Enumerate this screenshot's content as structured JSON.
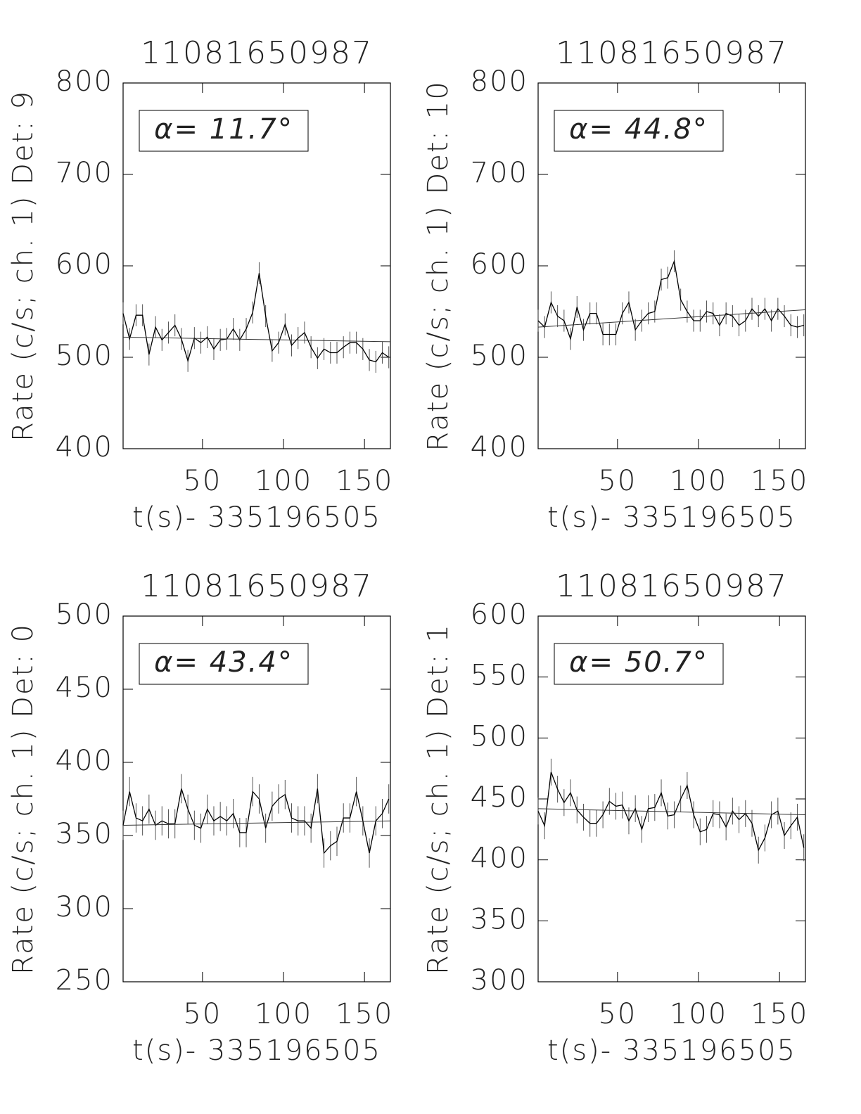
{
  "chart_data": [
    {
      "type": "line",
      "title": "11081650987",
      "xlabel": "t(s)- 335196505",
      "ylabel": "Rate (c/s; ch. 1) Det: 9",
      "annotation": "α= 11.7°",
      "color": "#000000",
      "x": [
        1,
        5,
        9,
        13,
        17,
        21,
        25,
        29,
        33,
        37,
        41,
        45,
        49,
        53,
        57,
        61,
        65,
        69,
        73,
        77,
        81,
        85,
        89,
        93,
        97,
        101,
        105,
        109,
        113,
        117,
        121,
        125,
        129,
        133,
        137,
        141,
        145,
        149,
        153,
        157,
        161,
        165
      ],
      "values": [
        548,
        520,
        546,
        546,
        503,
        533,
        519,
        527,
        535,
        520,
        496,
        521,
        516,
        522,
        509,
        519,
        520,
        531,
        519,
        531,
        549,
        592,
        545,
        507,
        516,
        536,
        513,
        521,
        527,
        511,
        499,
        509,
        505,
        505,
        511,
        516,
        516,
        509,
        497,
        495,
        505,
        500
      ],
      "error": 12,
      "fit_x": [
        1,
        166
      ],
      "fit_y": [
        522,
        517
      ],
      "xlim": [
        1,
        166
      ],
      "ylim": [
        400,
        800
      ],
      "xticks": [
        50,
        100,
        150
      ],
      "yticks": [
        400,
        500,
        600,
        700,
        800
      ]
    },
    {
      "type": "line",
      "title": "11081650987",
      "xlabel": "t(s)- 335196505",
      "ylabel": "Rate (c/s; ch. 1) Det: 10",
      "annotation": "α= 44.8°",
      "color": "#000000",
      "x": [
        1,
        5,
        9,
        13,
        17,
        21,
        25,
        29,
        33,
        37,
        41,
        45,
        49,
        53,
        57,
        61,
        65,
        69,
        73,
        77,
        81,
        85,
        89,
        93,
        97,
        101,
        105,
        109,
        113,
        117,
        121,
        125,
        129,
        133,
        137,
        141,
        145,
        149,
        153,
        157,
        161,
        165
      ],
      "values": [
        540,
        533,
        560,
        545,
        540,
        520,
        555,
        530,
        548,
        548,
        525,
        525,
        525,
        548,
        560,
        530,
        540,
        548,
        550,
        585,
        587,
        605,
        563,
        550,
        540,
        540,
        550,
        548,
        535,
        548,
        545,
        535,
        540,
        553,
        545,
        553,
        540,
        553,
        545,
        535,
        533,
        535
      ],
      "error": 12,
      "fit_x": [
        1,
        166
      ],
      "fit_y": [
        533,
        552
      ],
      "xlim": [
        1,
        166
      ],
      "ylim": [
        400,
        800
      ],
      "xticks": [
        50,
        100,
        150
      ],
      "yticks": [
        400,
        500,
        600,
        700,
        800
      ]
    },
    {
      "type": "line",
      "title": "11081650987",
      "xlabel": "t(s)- 335196505",
      "ylabel": "Rate (c/s; ch. 1) Det: 0",
      "annotation": "α= 43.4°",
      "color": "#000000",
      "x": [
        1,
        5,
        9,
        13,
        17,
        21,
        25,
        29,
        33,
        37,
        41,
        45,
        49,
        53,
        57,
        61,
        65,
        69,
        73,
        77,
        81,
        85,
        89,
        93,
        97,
        101,
        105,
        109,
        113,
        117,
        121,
        125,
        129,
        133,
        137,
        141,
        145,
        149,
        153,
        157,
        161,
        165
      ],
      "values": [
        357,
        380,
        362,
        360,
        368,
        357,
        360,
        358,
        358,
        382,
        368,
        357,
        355,
        368,
        360,
        363,
        360,
        365,
        352,
        352,
        380,
        375,
        355,
        370,
        375,
        378,
        362,
        360,
        360,
        355,
        382,
        338,
        343,
        346,
        362,
        362,
        380,
        360,
        338,
        360,
        365,
        375
      ],
      "error": 10,
      "fit_x": [
        1,
        166
      ],
      "fit_y": [
        357,
        360
      ],
      "xlim": [
        1,
        166
      ],
      "ylim": [
        250,
        500
      ],
      "xticks": [
        50,
        100,
        150
      ],
      "yticks": [
        250,
        300,
        350,
        400,
        450,
        500
      ]
    },
    {
      "type": "line",
      "title": "11081650987",
      "xlabel": "t(s)- 335196505",
      "ylabel": "Rate (c/s; ch. 1) Det: 1",
      "annotation": "α= 50.7°",
      "color": "#000000",
      "x": [
        1,
        5,
        9,
        13,
        17,
        21,
        25,
        29,
        33,
        37,
        41,
        45,
        49,
        53,
        57,
        61,
        65,
        69,
        73,
        77,
        81,
        85,
        89,
        93,
        97,
        101,
        105,
        109,
        113,
        117,
        121,
        125,
        129,
        133,
        137,
        141,
        145,
        149,
        153,
        157,
        161,
        165
      ],
      "values": [
        440,
        428,
        472,
        458,
        447,
        455,
        441,
        435,
        430,
        430,
        437,
        448,
        444,
        445,
        432,
        442,
        425,
        442,
        443,
        455,
        436,
        437,
        450,
        461,
        437,
        423,
        425,
        438,
        437,
        427,
        440,
        433,
        438,
        430,
        408,
        418,
        437,
        440,
        420,
        428,
        435,
        410
      ],
      "error": 11,
      "fit_x": [
        1,
        166
      ],
      "fit_y": [
        442,
        437
      ],
      "xlim": [
        1,
        166
      ],
      "ylim": [
        300,
        600
      ],
      "xticks": [
        50,
        100,
        150
      ],
      "yticks": [
        300,
        350,
        400,
        450,
        500,
        550,
        600
      ]
    }
  ]
}
